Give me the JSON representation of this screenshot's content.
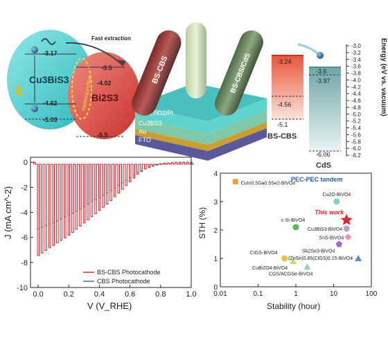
{
  "band": {
    "cbs_name": "Cu3BiS3",
    "bs_name": "Bi2S3",
    "heterojunction_label": "Heterojunction",
    "fast_extraction": "Fast extraction",
    "cbs_cb": "-3.17",
    "cbs_vb": "-4.62",
    "cbs_mid": "-5.03",
    "bs_cb": "-3.5",
    "bs_mid": "-4.02",
    "bs_vb": "-5.5"
  },
  "device": {
    "rod1_label": "BS-CBS",
    "rod2_label": "BS-CBS/CdS",
    "layers": [
      "CdS/TiO2/Pt",
      "Cu3BS3",
      "Au",
      "FTO"
    ]
  },
  "energy_diagram": {
    "axis_label": "Energy (eV vs. vacuum)",
    "ticks": [
      "-3.0",
      "-3.2",
      "-3.4",
      "-3.6",
      "-3.8",
      "-4.0",
      "-4.2",
      "-4.4",
      "-4.6",
      "-4.8",
      "-5.0",
      "-5.2",
      "-5.4",
      "-5.6",
      "-5.8",
      "-6.0",
      "-6.2"
    ],
    "bscbs": {
      "name": "BS-CBS",
      "top": "-3.24",
      "mid": "-4.56",
      "bottom": "-5.1"
    },
    "cds": {
      "name": "CdS",
      "top": "-3.6",
      "mid": "-3.97",
      "bottom": "-6.06"
    }
  },
  "chart_data": [
    {
      "type": "line",
      "xlabel": "V (V_RHE)",
      "ylabel": "J (mA cm^-2)",
      "xlim": [
        -0.05,
        1.0
      ],
      "ylim": [
        -10,
        0.4
      ],
      "xticks": [
        "0.0",
        "0.2",
        "0.4",
        "0.6",
        "0.8",
        "1.0"
      ],
      "yticks": [
        "0",
        "-2",
        "-4",
        "-6",
        "-8",
        "-10"
      ],
      "legend_position": "bottom-right",
      "chopped_light": true,
      "series": [
        {
          "name": "BS-CBS Photocathode",
          "color": "#d9242a",
          "x": [
            -0.03,
            0.0,
            0.05,
            0.1,
            0.15,
            0.2,
            0.25,
            0.3,
            0.35,
            0.4,
            0.45,
            0.5,
            0.55,
            0.6,
            0.65,
            0.7,
            0.75,
            0.8,
            0.85,
            0.9,
            0.95,
            1.0
          ],
          "y": [
            -7.7,
            -7.4,
            -7.0,
            -6.6,
            -6.2,
            -5.8,
            -5.3,
            -4.8,
            -4.3,
            -3.8,
            -3.3,
            -2.7,
            -2.1,
            -1.5,
            -0.9,
            -0.5,
            -0.25,
            -0.1,
            -0.05,
            0.0,
            0.0,
            0.0
          ]
        },
        {
          "name": "CBS Photocathode",
          "color": "#4f6fa6",
          "x": [
            -0.03,
            0.0,
            0.05,
            0.1,
            0.15,
            0.2,
            0.25,
            0.3,
            0.35,
            0.4,
            0.45,
            0.5,
            0.55,
            0.6,
            0.65,
            0.7,
            0.75,
            0.8,
            0.85,
            0.9,
            0.95,
            1.0
          ],
          "y": [
            -5.5,
            -5.3,
            -5.0,
            -4.8,
            -4.5,
            -4.2,
            -3.9,
            -3.5,
            -3.1,
            -2.8,
            -2.4,
            -2.0,
            -1.6,
            -1.2,
            -0.8,
            -0.5,
            -0.3,
            -0.15,
            -0.05,
            0.0,
            0.0,
            0.0
          ]
        }
      ]
    },
    {
      "type": "scatter",
      "title": "PEC-PEC tandem",
      "xlabel": "Stability (hour)",
      "ylabel": "STH (%)",
      "xscale": "log",
      "xlim": [
        0.01,
        100
      ],
      "ylim": [
        0,
        4
      ],
      "xticks": [
        "0.01",
        "0.1",
        "1",
        "10",
        "100"
      ],
      "yticks": [
        "0",
        "1",
        "2",
        "3",
        "4"
      ],
      "points": [
        {
          "label": "CuIn0.5Ga0.5Se2-BiVO4",
          "x": 0.025,
          "y": 3.7,
          "color": "#f0a030",
          "marker": "cylinder"
        },
        {
          "label": "Cu2O-BiVO4",
          "x": 12,
          "y": 3.0,
          "color": "#7dd3c8",
          "marker": "circle"
        },
        {
          "label": "This work",
          "x": 22,
          "y": 2.35,
          "color": "#e8262a",
          "marker": "star"
        },
        {
          "label": "c-Si-BiVO4",
          "x": 1,
          "y": 2.1,
          "color": "#5cb85c",
          "marker": "circle"
        },
        {
          "label": "Cu3BiS3-BiVO4",
          "x": 22,
          "y": 2.05,
          "color": "#b39ddb",
          "marker": "circle"
        },
        {
          "label": "SnS-BiVO4",
          "x": 24,
          "y": 1.75,
          "color": "#f48fb1",
          "marker": "diamond"
        },
        {
          "label": "Sb2Se3-BiVO4",
          "x": 14,
          "y": 1.5,
          "color": "#9c6fc0",
          "marker": "pentagon"
        },
        {
          "label": "CIGS-BiVO4",
          "x": 0.5,
          "y": 1.0,
          "color": "#f0c040",
          "marker": "circle"
        },
        {
          "label": "CuBi2O4-BiVO4",
          "x": 0.85,
          "y": 0.9,
          "color": "#c7d870",
          "marker": "triangle"
        },
        {
          "label": "(ZnSe)0.85(CIGS)0.15-BiVO4",
          "x": 45,
          "y": 1.0,
          "color": "#5f8fc8",
          "marker": "triangle"
        },
        {
          "label": "CGS/ACGSe-BiVO4",
          "x": 2,
          "y": 0.7,
          "color": "#8fd3b0",
          "marker": "triangle"
        }
      ]
    }
  ]
}
